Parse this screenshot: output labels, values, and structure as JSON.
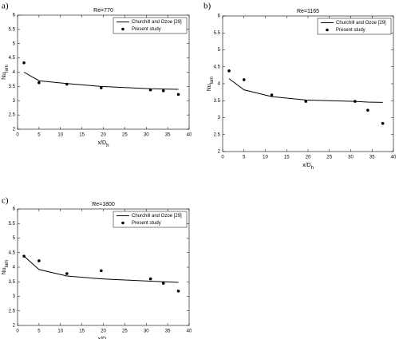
{
  "chart_data": [
    {
      "type": "line",
      "panel": "a)",
      "title": "Re=770",
      "xlabel": "x/D",
      "xlabel_sub": "h",
      "ylabel": "Nu",
      "ylabel_sub": "lam",
      "x": [
        1.5,
        5,
        11.5,
        19.5,
        31,
        34,
        37.5
      ],
      "series": [
        {
          "name": "Churchill and Ozoe [29]",
          "style": "line",
          "color": "#000000",
          "values": [
            4.0,
            3.7,
            3.6,
            3.5,
            3.42,
            3.41,
            3.4
          ]
        },
        {
          "name": "Present study",
          "style": "markers",
          "color": "#000000",
          "values": [
            4.33,
            3.63,
            3.58,
            3.45,
            3.38,
            3.35,
            3.22
          ]
        }
      ],
      "xlim": [
        0,
        40
      ],
      "ylim": [
        2,
        6
      ],
      "xticks": [
        0,
        5,
        10,
        15,
        20,
        25,
        30,
        35,
        40
      ],
      "yticks": [
        2,
        2.5,
        3,
        3.5,
        4,
        4.5,
        5,
        5.5,
        6
      ],
      "legend": "upper right",
      "grid": false
    },
    {
      "type": "line",
      "panel": "b)",
      "title": "Re=1165",
      "xlabel": "x/D",
      "xlabel_sub": "h",
      "ylabel": "Nu",
      "ylabel_sub": "lam",
      "x": [
        1.5,
        5,
        11.5,
        19.5,
        31,
        34,
        37.5
      ],
      "series": [
        {
          "name": "Churchill and Ozoe [29]",
          "style": "line",
          "color": "#000000",
          "values": [
            4.15,
            3.82,
            3.62,
            3.52,
            3.48,
            3.46,
            3.45
          ]
        },
        {
          "name": "Present study",
          "style": "markers",
          "color": "#000000",
          "values": [
            4.38,
            4.12,
            3.67,
            3.48,
            3.48,
            3.22,
            2.83
          ]
        }
      ],
      "xlim": [
        0,
        40
      ],
      "ylim": [
        2,
        6
      ],
      "xticks": [
        0,
        5,
        10,
        15,
        20,
        25,
        30,
        35,
        40
      ],
      "yticks": [
        2,
        2.5,
        3,
        3.5,
        4,
        4.5,
        5,
        5.5,
        6
      ],
      "legend": "upper right",
      "grid": false
    },
    {
      "type": "line",
      "panel": "c)",
      "title": "Re=1800",
      "xlabel": "x/D",
      "xlabel_sub": "h",
      "ylabel": "Nu",
      "ylabel_sub": "lam",
      "x": [
        1.5,
        5,
        11.5,
        19.5,
        31,
        34,
        37.5
      ],
      "series": [
        {
          "name": "Churchill and Ozoe [29]",
          "style": "line",
          "color": "#000000",
          "values": [
            4.38,
            3.92,
            3.7,
            3.6,
            3.52,
            3.5,
            3.48
          ]
        },
        {
          "name": "Present study",
          "style": "markers",
          "color": "#000000",
          "values": [
            4.38,
            4.22,
            3.78,
            3.88,
            3.6,
            3.45,
            3.18
          ]
        }
      ],
      "xlim": [
        0,
        40
      ],
      "ylim": [
        2,
        6
      ],
      "xticks": [
        0,
        5,
        10,
        15,
        20,
        25,
        30,
        35,
        40
      ],
      "yticks": [
        2,
        2.5,
        3,
        3.5,
        4,
        4.5,
        5,
        5.5,
        6
      ],
      "legend": "upper right",
      "grid": false
    }
  ]
}
